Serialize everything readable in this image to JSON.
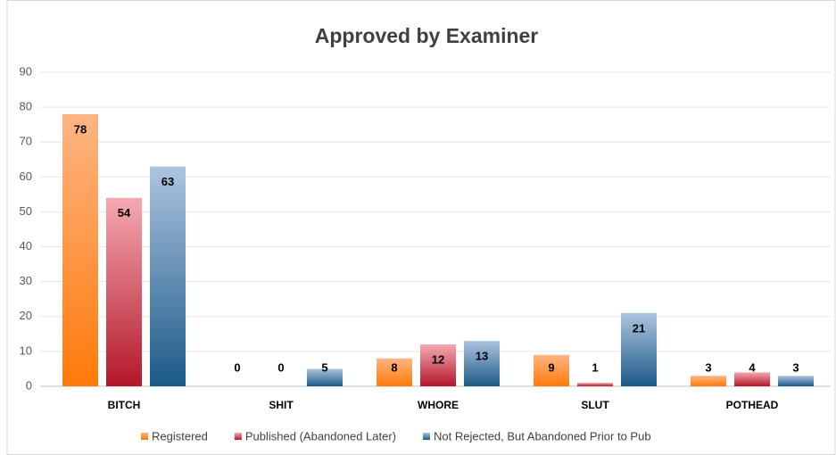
{
  "chart_data": {
    "type": "bar",
    "title": "Approved by Examiner",
    "categories": [
      "BITCH",
      "SHIT",
      "WHORE",
      "SLUT",
      "POTHEAD"
    ],
    "series": [
      {
        "name": "Registered",
        "color": [
          "#fdb584",
          "#ff7a0a"
        ],
        "values": [
          78,
          0,
          8,
          9,
          3
        ]
      },
      {
        "name": "Published (Abandoned Later)",
        "color": [
          "#f5a9b1",
          "#b3172a"
        ],
        "values": [
          54,
          0,
          12,
          1,
          4
        ]
      },
      {
        "name": "Not Rejected, But Abandoned Prior to Pub",
        "color": [
          "#adc4e0",
          "#1b5a88"
        ],
        "values": [
          63,
          5,
          13,
          21,
          3
        ]
      }
    ],
    "ylim": [
      0,
      90
    ],
    "yticks": [
      0,
      10,
      20,
      30,
      40,
      50,
      60,
      70,
      80,
      90
    ],
    "grid": true,
    "legend": "bottom"
  }
}
